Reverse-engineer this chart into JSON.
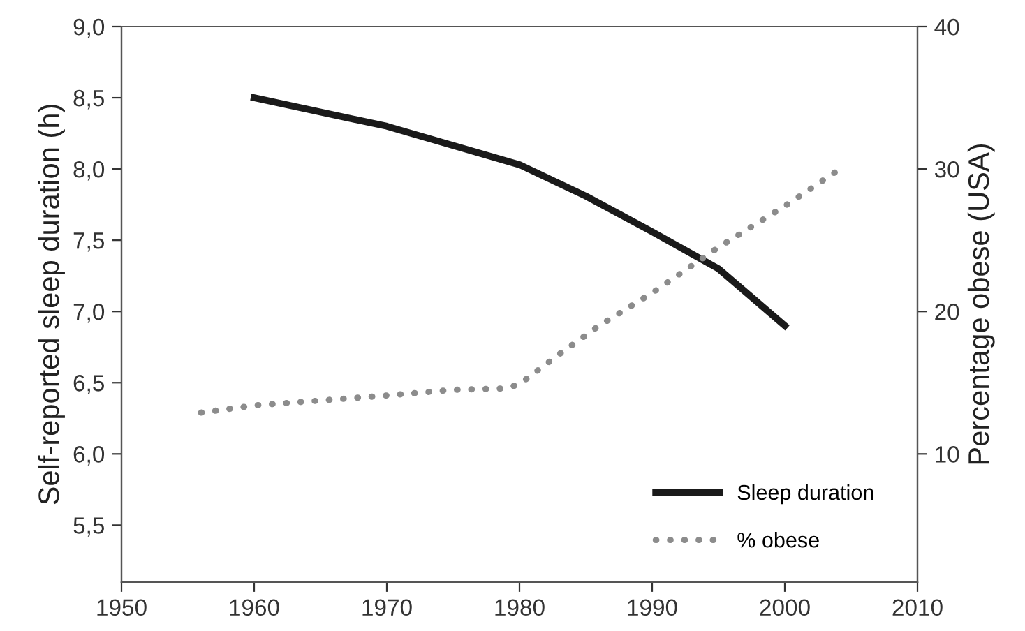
{
  "chart_data": {
    "type": "line",
    "ylabel": "Self-reported sleep duration (h)",
    "y2label": "Percentage obese (USA)",
    "xlim": [
      1950,
      2010
    ],
    "xticks": [
      1950,
      1960,
      1970,
      1980,
      1990,
      2000,
      2010
    ],
    "ylim": [
      5.1,
      9.0
    ],
    "yticks": [
      {
        "value": 5.5,
        "label": "5,5"
      },
      {
        "value": 6.0,
        "label": "6,0"
      },
      {
        "value": 6.5,
        "label": "6,5"
      },
      {
        "value": 7.0,
        "label": "7,0"
      },
      {
        "value": 7.5,
        "label": "7,5"
      },
      {
        "value": 8.0,
        "label": "8,0"
      },
      {
        "value": 8.5,
        "label": "8,5"
      },
      {
        "value": 9.0,
        "label": "9,0"
      }
    ],
    "y2lim": [
      1,
      40
    ],
    "y2ticks": [
      10,
      20,
      30,
      40
    ],
    "grid": false,
    "legend": "bottom right",
    "marker": "none",
    "series": [
      {
        "name": "Sleep duration",
        "color": "#1a1a1a",
        "line_style": "solid",
        "x": [
          1960,
          1970,
          1980,
          1985,
          1990,
          1995,
          2000
        ],
        "values": [
          8.5,
          8.3,
          8.03,
          7.81,
          7.56,
          7.3,
          6.9
        ]
      },
      {
        "name": "% obese",
        "color": "#8c8c8c",
        "line_style": "dotted",
        "axis": "y2",
        "x": [
          1956,
          1960,
          1970,
          1975,
          1979,
          1980,
          1983,
          1986,
          1990,
          1995,
          2000,
          2004
        ],
        "values": [
          12.9,
          13.4,
          14.1,
          14.5,
          14.6,
          14.9,
          17.0,
          19.0,
          21.3,
          24.5,
          27.4,
          29.9
        ]
      }
    ]
  }
}
